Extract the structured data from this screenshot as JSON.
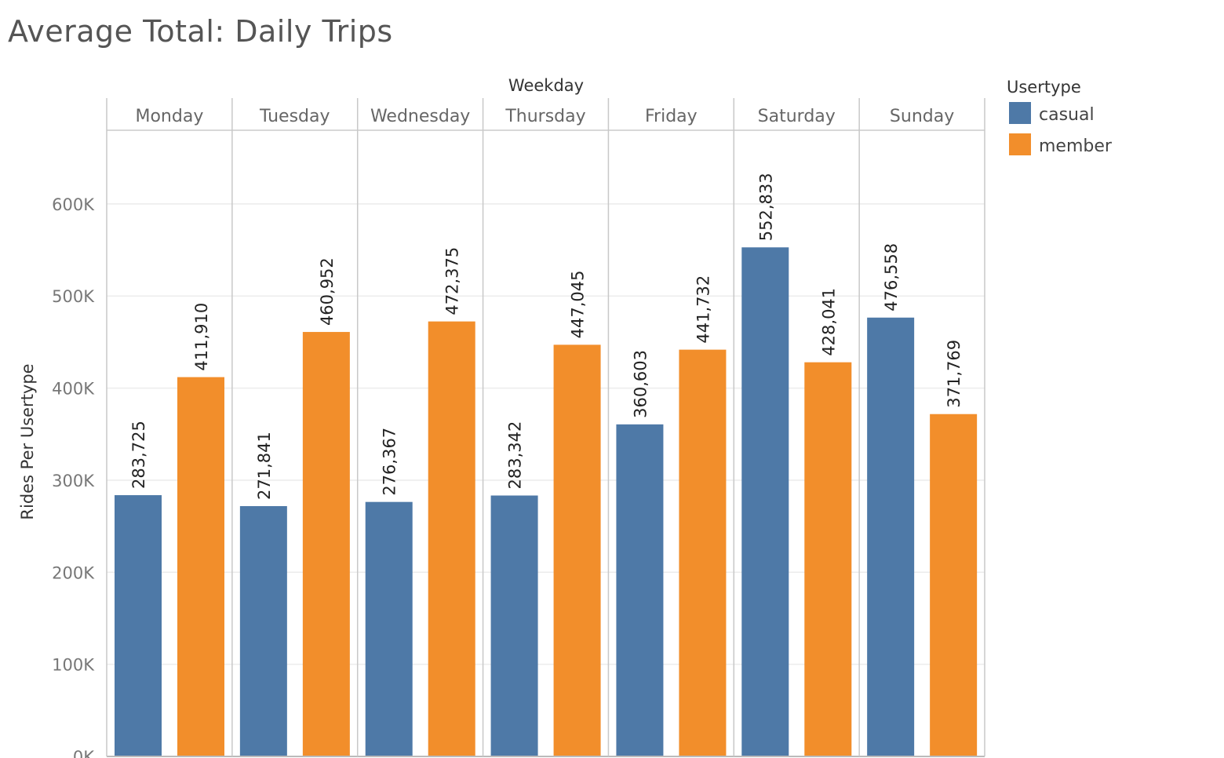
{
  "chart_data": {
    "type": "bar",
    "title": "Average Total: Daily Trips",
    "column_header": "Weekday",
    "ylabel": "Rides Per Usertype",
    "ylim": [
      0,
      680000
    ],
    "yticks": [
      0,
      100000,
      200000,
      300000,
      400000,
      500000,
      600000
    ],
    "ytick_labels": [
      "0K",
      "100K",
      "200K",
      "300K",
      "400K",
      "500K",
      "600K"
    ],
    "categories": [
      "Monday",
      "Tuesday",
      "Wednesday",
      "Thursday",
      "Friday",
      "Saturday",
      "Sunday"
    ],
    "series": [
      {
        "name": "casual",
        "color": "#4e79a7",
        "values": [
          283725,
          271841,
          276367,
          283342,
          360603,
          552833,
          476558
        ],
        "labels": [
          "283,725",
          "271,841",
          "276,367",
          "283,342",
          "360,603",
          "552,833",
          "476,558"
        ]
      },
      {
        "name": "member",
        "color": "#f28e2b",
        "values": [
          411910,
          460952,
          472375,
          447045,
          441732,
          428041,
          371769
        ],
        "labels": [
          "411,910",
          "460,952",
          "472,375",
          "447,045",
          "441,732",
          "428,041",
          "371,769"
        ]
      }
    ],
    "legend": {
      "title": "Usertype",
      "position": "top-right"
    },
    "grid": true
  }
}
